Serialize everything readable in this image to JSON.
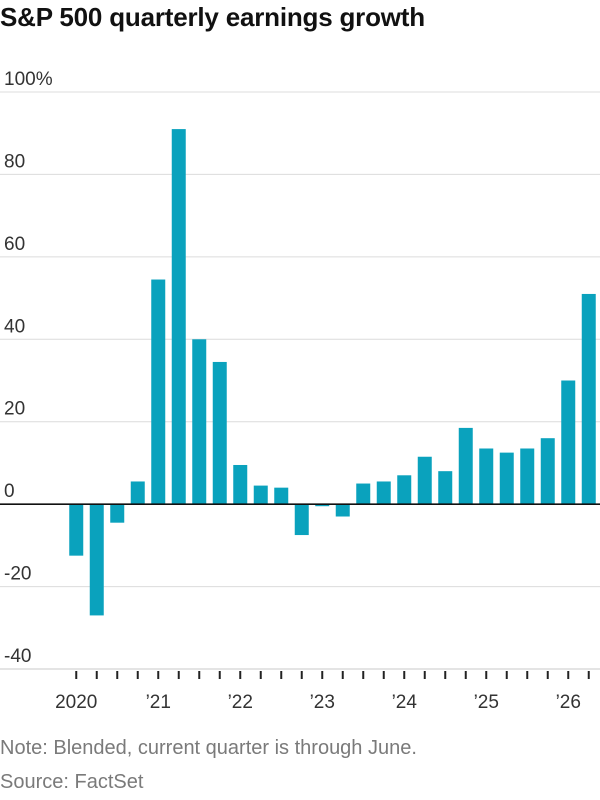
{
  "title": "S&P 500 quarterly earnings growth",
  "note": "Note: Blended, current quarter is through June.",
  "source": "Source: FactSet",
  "colors": {
    "bar": "#0aa2bd",
    "grid": "#dcdcdc",
    "zero_line": "#111111",
    "axis_text": "#333333",
    "note_text": "#7a7a7a"
  },
  "chart_data": {
    "type": "bar",
    "title": "S&P 500 quarterly earnings growth",
    "xlabel": "",
    "ylabel": "",
    "ylim": [
      -40,
      100
    ],
    "yticks": [
      -40,
      -20,
      0,
      20,
      40,
      60,
      80,
      100
    ],
    "ytick_labels": [
      "-40",
      "-20",
      "0",
      "20",
      "40",
      "60",
      "80",
      "100%"
    ],
    "grid": true,
    "x_year_labels": [
      {
        "label": "2020",
        "year": 2020
      },
      {
        "label": "’21",
        "year": 2021
      },
      {
        "label": "’22",
        "year": 2022
      },
      {
        "label": "’23",
        "year": 2023
      },
      {
        "label": "’24",
        "year": 2024
      },
      {
        "label": "’25",
        "year": 2025
      },
      {
        "label": "’26",
        "year": 2026
      }
    ],
    "categories": [
      "2020 Q1",
      "2020 Q2",
      "2020 Q3",
      "2020 Q4",
      "2021 Q1",
      "2021 Q2",
      "2021 Q3",
      "2021 Q4",
      "2022 Q1",
      "2022 Q2",
      "2022 Q3",
      "2022 Q4",
      "2023 Q1",
      "2023 Q2",
      "2023 Q3",
      "2023 Q4",
      "2024 Q1",
      "2024 Q2",
      "2024 Q3",
      "2024 Q4",
      "2025 Q1",
      "2025 Q2",
      "2025 Q3",
      "2025 Q4",
      "2026 Q1",
      "2026 Q2"
    ],
    "values": [
      -12.5,
      -27,
      -4.5,
      5.5,
      54.5,
      91,
      40,
      34.5,
      9.5,
      4.5,
      4,
      -7.5,
      -0.5,
      -3,
      5,
      5.5,
      7,
      11.5,
      8,
      18.5,
      13.5,
      12.5,
      13.5,
      16,
      30,
      51
    ]
  }
}
